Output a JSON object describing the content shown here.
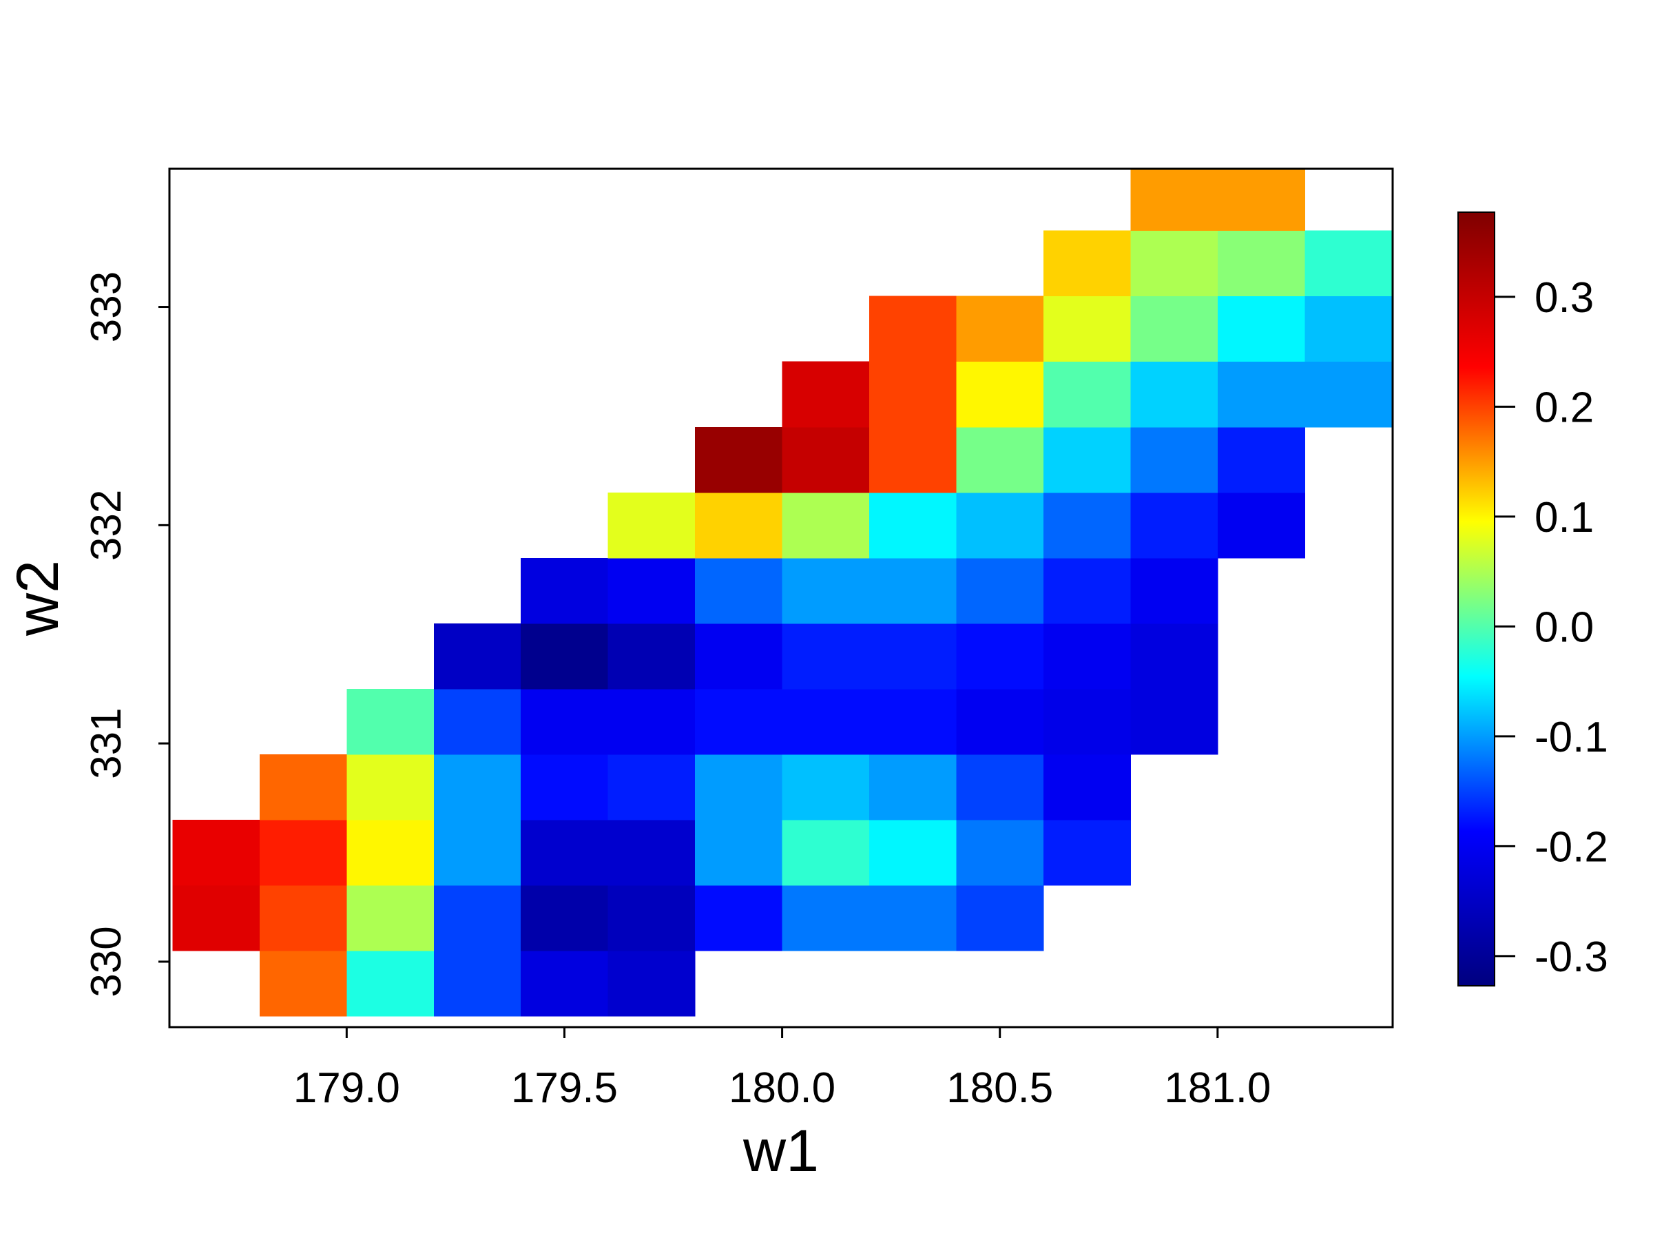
{
  "chart_data": {
    "type": "heatmap",
    "x_label": "w1",
    "y_label": "w2",
    "x": [
      178.7,
      178.9,
      179.1,
      179.3,
      179.5,
      179.7,
      179.9,
      180.1,
      180.3,
      180.5,
      180.7,
      180.9,
      181.1,
      181.3
    ],
    "y": [
      329.9,
      330.2,
      330.5,
      330.8,
      331.1,
      331.4,
      331.7,
      332.0,
      332.3,
      332.6,
      332.9,
      333.2,
      333.5
    ],
    "z": [
      [
        null,
        0.18,
        -0.03,
        -0.15,
        -0.22,
        -0.24,
        null,
        null,
        null,
        null,
        null,
        null,
        null,
        null
      ],
      [
        0.27,
        0.2,
        0.05,
        -0.15,
        -0.28,
        -0.26,
        -0.18,
        -0.12,
        -0.12,
        -0.15,
        null,
        null,
        null,
        null
      ],
      [
        0.26,
        0.22,
        0.1,
        -0.1,
        -0.24,
        -0.24,
        -0.1,
        -0.02,
        -0.05,
        -0.12,
        -0.17,
        null,
        null,
        null
      ],
      [
        null,
        0.18,
        0.08,
        -0.1,
        -0.18,
        -0.17,
        -0.1,
        -0.08,
        -0.1,
        -0.15,
        -0.2,
        null,
        null,
        null
      ],
      [
        null,
        null,
        0.0,
        -0.15,
        -0.2,
        -0.2,
        -0.18,
        -0.18,
        -0.18,
        -0.2,
        -0.21,
        -0.22,
        null,
        null
      ],
      [
        null,
        null,
        null,
        -0.25,
        -0.31,
        -0.27,
        -0.2,
        -0.17,
        -0.17,
        -0.18,
        -0.2,
        -0.22,
        null,
        null
      ],
      [
        null,
        null,
        null,
        null,
        -0.22,
        -0.2,
        -0.13,
        -0.1,
        -0.1,
        -0.13,
        -0.17,
        -0.2,
        null,
        null
      ],
      [
        null,
        null,
        null,
        null,
        null,
        0.08,
        0.12,
        0.05,
        -0.05,
        -0.08,
        -0.13,
        -0.17,
        -0.2,
        null
      ],
      [
        null,
        null,
        null,
        null,
        null,
        null,
        0.35,
        0.3,
        0.2,
        0.02,
        -0.07,
        -0.12,
        -0.17,
        null
      ],
      [
        null,
        null,
        null,
        null,
        null,
        null,
        null,
        0.28,
        0.2,
        0.1,
        0.0,
        -0.07,
        -0.1,
        -0.1
      ],
      [
        null,
        null,
        null,
        null,
        null,
        null,
        null,
        null,
        0.2,
        0.15,
        0.08,
        0.02,
        -0.05,
        -0.08
      ],
      [
        null,
        null,
        null,
        null,
        null,
        null,
        null,
        null,
        null,
        null,
        0.12,
        0.05,
        0.03,
        -0.02
      ],
      [
        null,
        null,
        null,
        null,
        null,
        null,
        null,
        null,
        null,
        null,
        null,
        0.15,
        0.15,
        null
      ]
    ],
    "cell_width": 0.2,
    "cell_height": 0.3,
    "xlim": [
      178.593,
      181.402
    ],
    "ylim": [
      329.7,
      333.633
    ],
    "xticks": [
      {
        "value": 179,
        "label": "179.0"
      },
      179.5,
      {
        "value": 180,
        "label": "180.0"
      },
      180.5,
      {
        "value": 181,
        "label": "181.0"
      }
    ],
    "yticks": [
      330,
      331,
      332,
      333
    ],
    "zlim": [
      -0.327,
      0.377
    ],
    "zticks": [
      -0.3,
      -0.2,
      -0.1,
      {
        "value": 0,
        "label": "0.0"
      },
      0.1,
      0.2,
      0.3
    ],
    "colormap": [
      "#00007F",
      "#0000FF",
      "#00FFFF",
      "#FFFF00",
      "#FF0000",
      "#7F0000"
    ]
  }
}
